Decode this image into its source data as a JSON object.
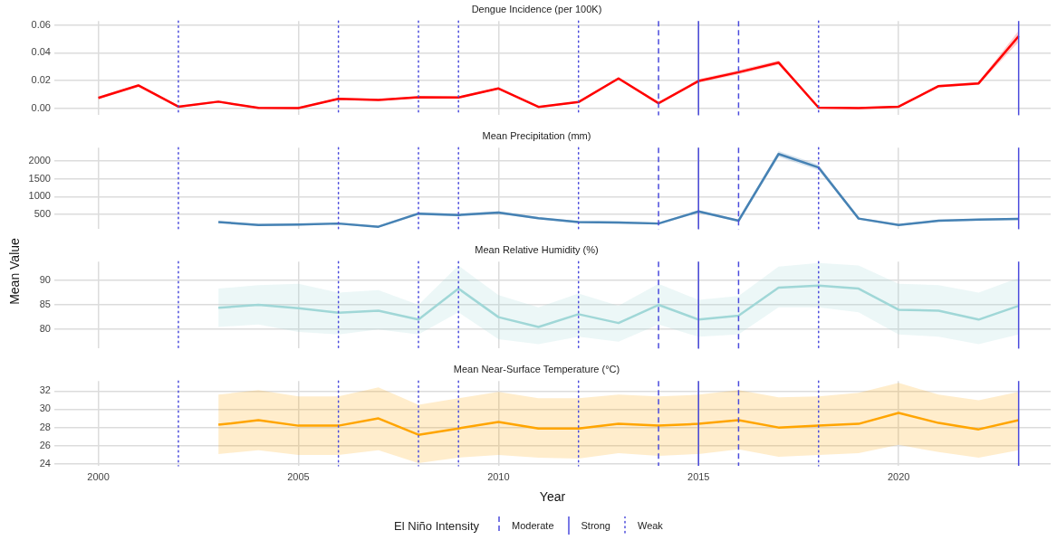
{
  "chart_data": [
    {
      "type": "line",
      "title": "Dengue Incidence (per 100K)",
      "x": [
        2000,
        2001,
        2002,
        2003,
        2004,
        2005,
        2006,
        2007,
        2008,
        2009,
        2010,
        2011,
        2012,
        2013,
        2014,
        2015,
        2016,
        2017,
        2018,
        2019,
        2020,
        2021,
        2022,
        2023
      ],
      "series": [
        {
          "color": "#ff0000",
          "values": [
            0.0075,
            0.0165,
            0.0012,
            0.0048,
            0.0003,
            0.0002,
            0.0068,
            0.006,
            0.008,
            0.0078,
            0.0143,
            0.001,
            0.0045,
            0.0215,
            0.0037,
            0.0197,
            0.026,
            0.033,
            0.0005,
            0.0002,
            0.0012,
            0.016,
            0.018,
            0.052
          ],
          "lower": [
            0.0065,
            0.0155,
            0.0005,
            0.004,
            0.0,
            0.0,
            0.006,
            0.0052,
            0.0072,
            0.007,
            0.0135,
            0.0003,
            0.0038,
            0.0205,
            0.003,
            0.0185,
            0.0245,
            0.0315,
            0.0,
            0.0,
            0.0005,
            0.015,
            0.017,
            0.048
          ],
          "upper": [
            0.0085,
            0.0175,
            0.002,
            0.0056,
            0.001,
            0.001,
            0.0076,
            0.0068,
            0.0088,
            0.0086,
            0.0151,
            0.0017,
            0.0052,
            0.0225,
            0.0044,
            0.021,
            0.0275,
            0.0345,
            0.0012,
            0.001,
            0.002,
            0.017,
            0.019,
            0.056
          ]
        }
      ],
      "xlim": [
        1998.9,
        2023.8
      ],
      "xticks": [
        2000,
        2005,
        2010,
        2015,
        2020
      ],
      "ylim": [
        -0.005,
        0.063
      ],
      "yticks": [
        {
          "value": 0,
          "label": "0.00"
        },
        0.02,
        0.04,
        0.06
      ],
      "grid": true,
      "tick_labels": "y",
      "marker": "none",
      "line_style": "solid",
      "ref_lines": [
        {
          "axis": "x",
          "value": 2014,
          "line_style": "dashed",
          "color": "#4b4bdc"
        },
        {
          "axis": "x",
          "value": 2016,
          "line_style": "dashed",
          "color": "#4b4bdc"
        },
        {
          "axis": "x",
          "value": 2015,
          "line_style": "solid",
          "color": "#4b4bdc"
        },
        {
          "axis": "x",
          "value": 2023,
          "line_style": "solid",
          "color": "#4b4bdc"
        },
        {
          "axis": "x",
          "value": 2002,
          "line_style": "dotted",
          "color": "#4b4bdc"
        },
        {
          "axis": "x",
          "value": 2006,
          "line_style": "dotted",
          "color": "#4b4bdc"
        },
        {
          "axis": "x",
          "value": 2008,
          "line_style": "dotted",
          "color": "#4b4bdc"
        },
        {
          "axis": "x",
          "value": 2009,
          "line_style": "dotted",
          "color": "#4b4bdc"
        },
        {
          "axis": "x",
          "value": 2012,
          "line_style": "dotted",
          "color": "#4b4bdc"
        },
        {
          "axis": "x",
          "value": 2018,
          "line_style": "dotted",
          "color": "#4b4bdc"
        }
      ]
    },
    {
      "type": "line",
      "title": "Mean Precipitation (mm)",
      "x": [
        2003,
        2004,
        2005,
        2006,
        2007,
        2008,
        2009,
        2010,
        2011,
        2012,
        2013,
        2014,
        2015,
        2016,
        2017,
        2018,
        2019,
        2020,
        2021,
        2022,
        2023
      ],
      "series": [
        {
          "color": "#4682b4",
          "values": [
            280,
            200,
            210,
            240,
            150,
            520,
            480,
            550,
            390,
            280,
            270,
            240,
            580,
            320,
            2200,
            1820,
            380,
            200,
            320,
            350,
            370
          ],
          "lower": [
            250,
            170,
            180,
            210,
            120,
            480,
            440,
            510,
            360,
            250,
            240,
            210,
            540,
            290,
            2120,
            1740,
            350,
            170,
            290,
            320,
            340
          ],
          "upper": [
            310,
            230,
            240,
            270,
            180,
            560,
            520,
            590,
            420,
            310,
            300,
            270,
            620,
            350,
            2280,
            1900,
            410,
            230,
            350,
            380,
            400
          ]
        }
      ],
      "xlim": [
        1998.9,
        2023.8
      ],
      "xticks": [
        2000,
        2005,
        2010,
        2015,
        2020
      ],
      "ylim": [
        80,
        2380
      ],
      "yticks": [
        500,
        1000,
        1500,
        2000
      ],
      "grid": true,
      "tick_labels": "y",
      "marker": "none",
      "line_style": "solid",
      "ref_lines": [
        {
          "axis": "x",
          "value": 2014,
          "line_style": "dashed",
          "color": "#4b4bdc"
        },
        {
          "axis": "x",
          "value": 2016,
          "line_style": "dashed",
          "color": "#4b4bdc"
        },
        {
          "axis": "x",
          "value": 2015,
          "line_style": "solid",
          "color": "#4b4bdc"
        },
        {
          "axis": "x",
          "value": 2023,
          "line_style": "solid",
          "color": "#4b4bdc"
        },
        {
          "axis": "x",
          "value": 2002,
          "line_style": "dotted",
          "color": "#4b4bdc"
        },
        {
          "axis": "x",
          "value": 2006,
          "line_style": "dotted",
          "color": "#4b4bdc"
        },
        {
          "axis": "x",
          "value": 2008,
          "line_style": "dotted",
          "color": "#4b4bdc"
        },
        {
          "axis": "x",
          "value": 2009,
          "line_style": "dotted",
          "color": "#4b4bdc"
        },
        {
          "axis": "x",
          "value": 2012,
          "line_style": "dotted",
          "color": "#4b4bdc"
        },
        {
          "axis": "x",
          "value": 2018,
          "line_style": "dotted",
          "color": "#4b4bdc"
        }
      ]
    },
    {
      "type": "line",
      "title": "Mean Relative Humidity (%)",
      "ylabel": "Mean Value",
      "x": [
        2003,
        2004,
        2005,
        2006,
        2007,
        2008,
        2009,
        2010,
        2011,
        2012,
        2013,
        2014,
        2015,
        2016,
        2017,
        2018,
        2019,
        2020,
        2021,
        2022,
        2023
      ],
      "series": [
        {
          "color": "#a0d8d8",
          "values": [
            84.4,
            85,
            84.3,
            83.4,
            83.8,
            82,
            88.3,
            82.5,
            80.5,
            83.1,
            81.3,
            85,
            82,
            82.8,
            88.5,
            88.9,
            88.3,
            84,
            83.8,
            82,
            84.8
          ],
          "lower": [
            80.5,
            81,
            79.5,
            79,
            80,
            79,
            83.5,
            78,
            77,
            78.5,
            77.5,
            81,
            78.5,
            79,
            84.5,
            84.5,
            83.5,
            79,
            78.5,
            77,
            79
          ],
          "upper": [
            88.3,
            89,
            89.3,
            87.5,
            88,
            85,
            93,
            87,
            84.5,
            87.3,
            84.8,
            89.3,
            86,
            86.8,
            92.8,
            93.5,
            93,
            89.3,
            89,
            87.5,
            90.5
          ]
        }
      ],
      "xlim": [
        1998.9,
        2023.8
      ],
      "xticks": [
        2000,
        2005,
        2010,
        2015,
        2020
      ],
      "ylim": [
        76.1,
        93.8
      ],
      "yticks": [
        80,
        85,
        90
      ],
      "grid": true,
      "tick_labels": "y",
      "marker": "none",
      "line_style": "solid",
      "ref_lines": [
        {
          "axis": "x",
          "value": 2014,
          "line_style": "dashed",
          "color": "#4b4bdc"
        },
        {
          "axis": "x",
          "value": 2016,
          "line_style": "dashed",
          "color": "#4b4bdc"
        },
        {
          "axis": "x",
          "value": 2015,
          "line_style": "solid",
          "color": "#4b4bdc"
        },
        {
          "axis": "x",
          "value": 2023,
          "line_style": "solid",
          "color": "#4b4bdc"
        },
        {
          "axis": "x",
          "value": 2002,
          "line_style": "dotted",
          "color": "#4b4bdc"
        },
        {
          "axis": "x",
          "value": 2006,
          "line_style": "dotted",
          "color": "#4b4bdc"
        },
        {
          "axis": "x",
          "value": 2008,
          "line_style": "dotted",
          "color": "#4b4bdc"
        },
        {
          "axis": "x",
          "value": 2009,
          "line_style": "dotted",
          "color": "#4b4bdc"
        },
        {
          "axis": "x",
          "value": 2012,
          "line_style": "dotted",
          "color": "#4b4bdc"
        },
        {
          "axis": "x",
          "value": 2018,
          "line_style": "dotted",
          "color": "#4b4bdc"
        }
      ]
    },
    {
      "type": "line",
      "title": "Mean Near-Surface Temperature (°C)",
      "xlabel": "Year",
      "legend_title": "El Niño Intensity",
      "legend": "bottom",
      "x": [
        2003,
        2004,
        2005,
        2006,
        2007,
        2008,
        2009,
        2010,
        2011,
        2012,
        2013,
        2014,
        2015,
        2016,
        2017,
        2018,
        2019,
        2020,
        2021,
        2022,
        2023
      ],
      "series": [
        {
          "color": "#ffa500",
          "values": [
            28.3,
            28.8,
            28.2,
            28.2,
            29,
            27.2,
            27.9,
            28.6,
            27.9,
            27.9,
            28.4,
            28.2,
            28.4,
            28.8,
            28,
            28.2,
            28.4,
            29.6,
            28.5,
            27.8,
            28.8
          ],
          "lower": [
            25.1,
            25.5,
            25,
            25,
            25.5,
            24.1,
            24.7,
            25,
            24.7,
            24.6,
            25.2,
            24.9,
            25.1,
            25.6,
            24.8,
            25,
            25.2,
            26.1,
            25.3,
            24.7,
            25.5
          ],
          "upper": [
            31.6,
            32.1,
            31.4,
            31.4,
            32.4,
            30.5,
            31.2,
            31.9,
            31.2,
            31.2,
            31.6,
            31.4,
            31.6,
            32.1,
            31.3,
            31.4,
            31.8,
            32.9,
            31.6,
            31,
            31.9
          ]
        }
      ],
      "xlim": [
        1998.9,
        2023.8
      ],
      "xticks": [
        2000,
        2005,
        2010,
        2015,
        2020
      ],
      "ylim": [
        23.8,
        33.1
      ],
      "yticks": [
        24,
        26,
        28,
        30,
        32
      ],
      "grid": true,
      "marker": "none",
      "line_style": "solid",
      "ref_lines": [
        {
          "axis": "x",
          "value": 2014,
          "label": "Moderate",
          "line_style": "dashed",
          "color": "#4b4bdc"
        },
        {
          "axis": "x",
          "value": 2016,
          "line_style": "dashed",
          "color": "#4b4bdc"
        },
        {
          "axis": "x",
          "value": 2015,
          "label": "Strong",
          "line_style": "solid",
          "color": "#4b4bdc"
        },
        {
          "axis": "x",
          "value": 2023,
          "line_style": "solid",
          "color": "#4b4bdc"
        },
        {
          "axis": "x",
          "value": 2002,
          "label": "Weak",
          "line_style": "dotted",
          "color": "#4b4bdc"
        },
        {
          "axis": "x",
          "value": 2006,
          "line_style": "dotted",
          "color": "#4b4bdc"
        },
        {
          "axis": "x",
          "value": 2008,
          "line_style": "dotted",
          "color": "#4b4bdc"
        },
        {
          "axis": "x",
          "value": 2009,
          "line_style": "dotted",
          "color": "#4b4bdc"
        },
        {
          "axis": "x",
          "value": 2012,
          "line_style": "dotted",
          "color": "#4b4bdc"
        },
        {
          "axis": "x",
          "value": 2018,
          "line_style": "dotted",
          "color": "#4b4bdc"
        }
      ]
    }
  ]
}
